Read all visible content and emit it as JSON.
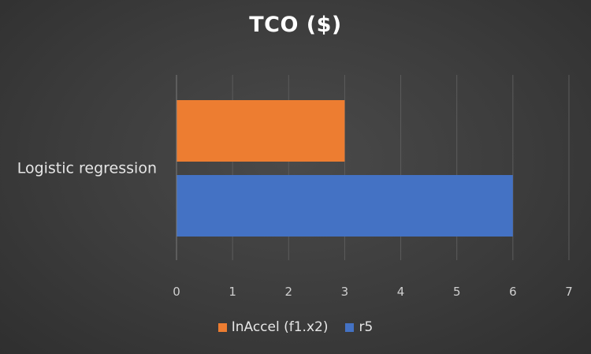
{
  "chart_data": {
    "type": "bar",
    "orientation": "horizontal",
    "title": "TCO ($)",
    "categories": [
      "Logistic regression"
    ],
    "series": [
      {
        "name": "InAccel (f1.x2)",
        "values": [
          3
        ],
        "color": "#ED7D31"
      },
      {
        "name": "r5",
        "values": [
          6
        ],
        "color": "#4472C4"
      }
    ],
    "xlim": [
      0,
      7
    ],
    "xticks": [
      "0",
      "1",
      "2",
      "3",
      "4",
      "5",
      "6",
      "7"
    ],
    "grid": true,
    "legend": "bottom"
  }
}
